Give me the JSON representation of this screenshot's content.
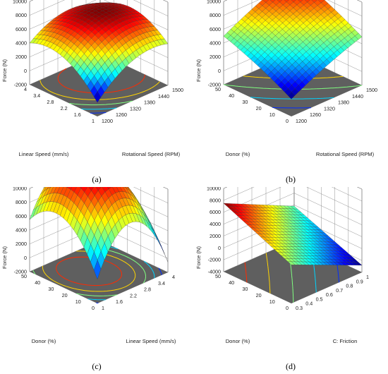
{
  "chart_data": [
    {
      "type": "surface3d",
      "caption": "(a)",
      "zlabel": "Force (N)",
      "xlabel": "Rotational Speed (RPM)",
      "ylabel": "Linear Speed (mm/s)",
      "zticks": [
        "-2000",
        "0",
        "2000",
        "4000",
        "6000",
        "8000",
        "10000"
      ],
      "xticks": [
        "1200",
        "1260",
        "1320",
        "1380",
        "1440",
        "1500"
      ],
      "yticks": [
        "1",
        "1.6",
        "2.2",
        "2.8",
        "3.4",
        "4"
      ],
      "zlim": [
        -2000,
        10000
      ],
      "xlim": [
        1200,
        1500
      ],
      "ylim": [
        1,
        4
      ],
      "corners": {
        "at_xmin_ymin": 0,
        "at_xmax_ymin": 4000,
        "at_xmin_ymax": 4000,
        "at_xmax_ymax": 5000
      },
      "curvature": {
        "x": 1800,
        "y": 2200,
        "xy": 0
      }
    },
    {
      "type": "surface3d",
      "caption": "(b)",
      "zlabel": "Force (N)",
      "xlabel": "Rotational Speed (RPM)",
      "ylabel": "Donor (%)",
      "zticks": [
        "-2000",
        "0",
        "2000",
        "4000",
        "6000",
        "8000",
        "10000"
      ],
      "xticks": [
        "1200",
        "1260",
        "1320",
        "1380",
        "1440",
        "1500"
      ],
      "yticks": [
        "0",
        "10",
        "20",
        "30",
        "40",
        "50"
      ],
      "zlim": [
        -2000,
        10000
      ],
      "xlim": [
        1200,
        1500
      ],
      "ylim": [
        0,
        50
      ],
      "corners": {
        "at_xmin_ymin": 500,
        "at_xmax_ymin": 5000,
        "at_xmin_ymax": 5000,
        "at_xmax_ymax": 9500
      },
      "curvature": {
        "x": 300,
        "y": 300,
        "xy": 0
      }
    },
    {
      "type": "surface3d",
      "caption": "(c)",
      "zlabel": "Force (N)",
      "xlabel": "Linear Speed (mm/s)",
      "ylabel": "Donor (%)",
      "zticks": [
        "-2000",
        "0",
        "2000",
        "4000",
        "6000",
        "8000",
        "10000"
      ],
      "xticks": [
        "1",
        "1.6",
        "2.2",
        "2.8",
        "3.4",
        "4"
      ],
      "yticks": [
        "0",
        "10",
        "20",
        "30",
        "40",
        "50"
      ],
      "zlim": [
        -2000,
        10000
      ],
      "xlim": [
        1,
        4
      ],
      "ylim": [
        0,
        50
      ],
      "corners": {
        "at_xmin_ymin": 1500,
        "at_xmax_ymin": -500,
        "at_xmin_ymax": 5500,
        "at_xmax_ymax": 1200
      },
      "curvature": {
        "x": 7000,
        "y": 4500,
        "xy": 0
      }
    },
    {
      "type": "surface3d",
      "caption": "(d)",
      "zlabel": "Force (N)",
      "xlabel": "C: Friction",
      "ylabel": "Donor (%)",
      "zticks": [
        "-4000",
        "-2000",
        "0",
        "2000",
        "4000",
        "6000",
        "8000",
        "10000"
      ],
      "xticks": [
        "0.3",
        "0.4",
        "0.5",
        "0.6",
        "0.7",
        "0.8",
        "0.9",
        "1"
      ],
      "yticks": [
        "0",
        "10",
        "20",
        "30",
        "40",
        "50"
      ],
      "zlim": [
        -4000,
        10000
      ],
      "xlim": [
        0.3,
        1
      ],
      "ylim": [
        0,
        50
      ],
      "corners": {
        "at_xmin_ymin": 2500,
        "at_xmax_ymin": -2800,
        "at_xmin_ymax": 7500,
        "at_xmax_ymax": 1800
      },
      "curvature": {
        "x": 0,
        "y": 0,
        "xy": 0
      }
    }
  ]
}
